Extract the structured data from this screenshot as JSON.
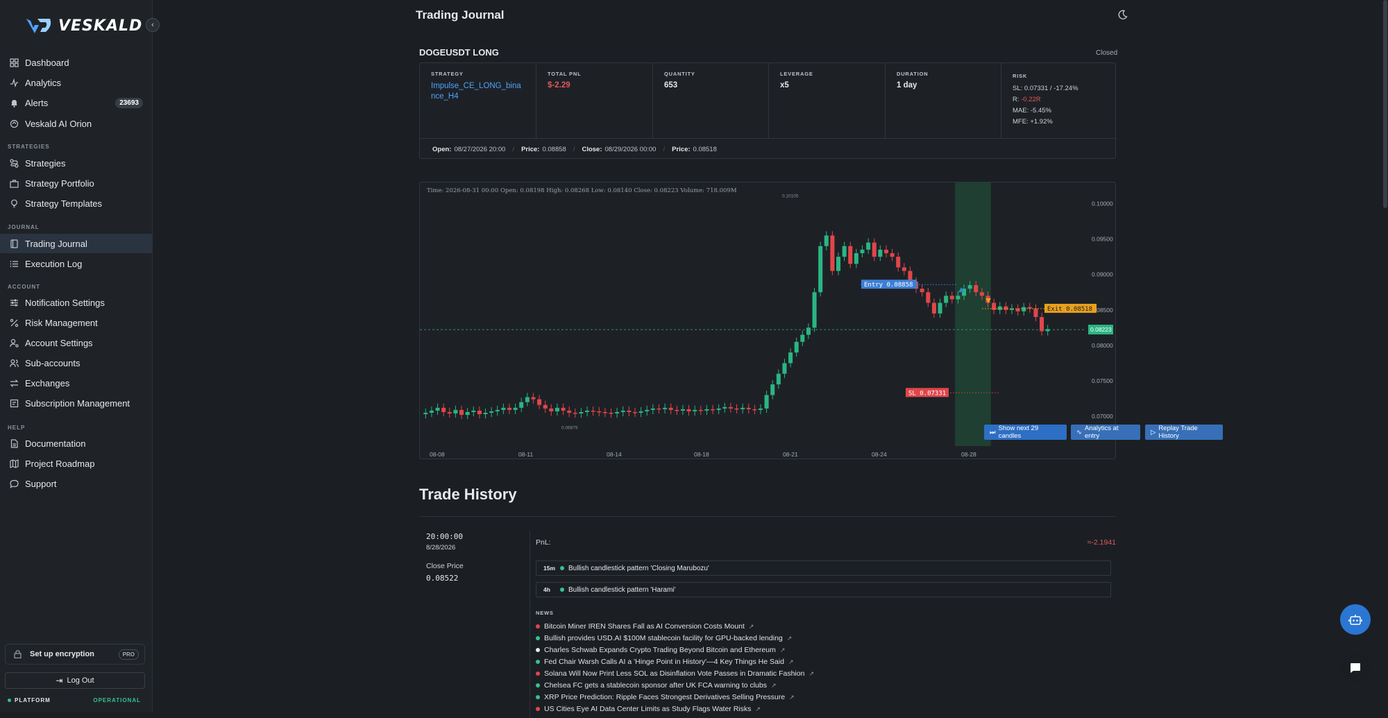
{
  "brand": {
    "name": "VESKALD"
  },
  "sidebar": {
    "items": [
      {
        "label": "Dashboard",
        "icon": "dashboard-icon"
      },
      {
        "label": "Analytics",
        "icon": "analytics-icon"
      },
      {
        "label": "Alerts",
        "icon": "bell-icon",
        "badge": "23693"
      },
      {
        "label": "Veskald AI Orion",
        "icon": "ai-icon"
      }
    ],
    "strategies_label": "STRATEGIES",
    "strategies": [
      {
        "label": "Strategies"
      },
      {
        "label": "Strategy Portfolio"
      },
      {
        "label": "Strategy Templates"
      }
    ],
    "journal_label": "JOURNAL",
    "journal": [
      {
        "label": "Trading Journal"
      },
      {
        "label": "Execution Log"
      }
    ],
    "account_label": "ACCOUNT",
    "account": [
      {
        "label": "Notification Settings"
      },
      {
        "label": "Risk Management"
      },
      {
        "label": "Account Settings"
      },
      {
        "label": "Sub-accounts"
      },
      {
        "label": "Exchanges"
      },
      {
        "label": "Subscription Management"
      }
    ],
    "help_label": "HELP",
    "help": [
      {
        "label": "Documentation"
      },
      {
        "label": "Project Roadmap"
      },
      {
        "label": "Support"
      }
    ],
    "encryption": "Set up encryption",
    "pro": "PRO",
    "logout": "Log Out",
    "platform": "PLATFORM",
    "platform_status": "OPERATIONAL"
  },
  "page": {
    "title": "Trading Journal",
    "symbol": "DOGEUSDT LONG",
    "status": "Closed"
  },
  "trade": {
    "strategy_label": "STRATEGY",
    "strategy": "Impulse_CE_LONG_binance_H4",
    "pnl_label": "TOTAL PNL",
    "pnl": "$-2.29",
    "qty_label": "QUANTITY",
    "qty": "653",
    "lev_label": "LEVERAGE",
    "lev": "x5",
    "dur_label": "DURATION",
    "dur": "1 day",
    "risk_label": "RISK",
    "sl": "SL: 0.07331  /  -17.24%",
    "r_label": "R: ",
    "r": "-0.22R",
    "mae": "MAE: -5.45%",
    "mfe": "MFE: +1.92%",
    "open_label": "Open:",
    "open": "08/27/2026 20:00",
    "oprice_label": "Price:",
    "oprice": "0.08858",
    "close_label": "Close:",
    "close": "08/29/2026 00:00",
    "cprice_label": "Price:",
    "cprice": "0.08518"
  },
  "chart_data": {
    "type": "candlestick",
    "ohlc_readout": "Time: 2026-08-31 00:00    Open: 0.08198    High: 0.08268    Low: 0.08140    Close: 0.08223    Volume: 718.009M",
    "x_ticks": [
      "08-08",
      "08-11",
      "08-14",
      "08-18",
      "08-21",
      "08-24",
      "08-28"
    ],
    "y_ticks": [
      "0.10000",
      "0.09500",
      "0.09000",
      "0.08500",
      "0.08000",
      "0.07500",
      "0.07000"
    ],
    "ylim": [
      0.066,
      0.102
    ],
    "high_label": "0.10105",
    "low_label": "0.06879",
    "entry": "Entry 0.08858",
    "exit": "Exit 0.08518",
    "sl": "SL 0.07331",
    "last": "0.08223",
    "entry_value": 0.08858,
    "exit_value": 0.08518,
    "sl_value": 0.07331,
    "last_value": 0.08223,
    "closes": [
      0.0705,
      0.0708,
      0.0712,
      0.0706,
      0.0704,
      0.0709,
      0.0702,
      0.0706,
      0.0708,
      0.0703,
      0.0705,
      0.0707,
      0.0709,
      0.0712,
      0.0709,
      0.0712,
      0.072,
      0.0727,
      0.0724,
      0.0716,
      0.0711,
      0.0707,
      0.0712,
      0.0708,
      0.0705,
      0.0704,
      0.0706,
      0.0708,
      0.0707,
      0.0706,
      0.0705,
      0.0704,
      0.0706,
      0.0708,
      0.0706,
      0.0705,
      0.0707,
      0.0709,
      0.0711,
      0.071,
      0.0712,
      0.0709,
      0.0708,
      0.071,
      0.0707,
      0.0709,
      0.0708,
      0.071,
      0.0709,
      0.0711,
      0.0713,
      0.0711,
      0.071,
      0.0712,
      0.071,
      0.0709,
      0.0711,
      0.073,
      0.0745,
      0.076,
      0.0775,
      0.079,
      0.0805,
      0.0815,
      0.0825,
      0.0875,
      0.094,
      0.0955,
      0.0905,
      0.0925,
      0.094,
      0.0915,
      0.093,
      0.0935,
      0.0945,
      0.0925,
      0.0935,
      0.093,
      0.0925,
      0.091,
      0.0905,
      0.089,
      0.088,
      0.0875,
      0.086,
      0.0845,
      0.086,
      0.087,
      0.0865,
      0.087,
      0.088,
      0.0885,
      0.0875,
      0.087,
      0.086,
      0.085,
      0.0855,
      0.085,
      0.0852,
      0.0848,
      0.0854,
      0.0852,
      0.084,
      0.082,
      0.0823
    ],
    "buttons": [
      "Show next 29 candles",
      "Analytics at entry",
      "Replay Trade History"
    ]
  },
  "history": {
    "title": "Trade History",
    "time": "20:00:00",
    "date": "8/28/2026",
    "close_price_label": "Close Price",
    "close_price": "0.08522",
    "pnl_label": "PnL:",
    "pnl": "≈-2.1941",
    "patterns": [
      {
        "tf": "15m",
        "text": "Bullish candlestick pattern 'Closing Marubozu'"
      },
      {
        "tf": "4h",
        "text": "Bullish candlestick pattern 'Harami'"
      }
    ],
    "news_label": "NEWS",
    "news": [
      {
        "text": "Bitcoin Miner IREN Shares Fall as AI Conversion Costs Mount",
        "color": "#e0464a"
      },
      {
        "text": "Bullish provides USD.AI $100M stablecoin facility for GPU-backed lending",
        "color": "#34c38f"
      },
      {
        "text": "Charles Schwab Expands Crypto Trading Beyond Bitcoin and Ethereum",
        "color": "#e6e8ea"
      },
      {
        "text": "Fed Chair Warsh Calls AI a 'Hinge Point in History'—4 Key Things He Said",
        "color": "#34c38f"
      },
      {
        "text": "Solana Will Now Print Less SOL as Disinflation Vote Passes in Dramatic Fashion",
        "color": "#e0464a"
      },
      {
        "text": "Chelsea FC gets a stablecoin sponsor after UK FCA warning to clubs",
        "color": "#34c38f"
      },
      {
        "text": "XRP Price Prediction: Ripple Faces Strongest Derivatives Selling Pressure",
        "color": "#34c38f"
      },
      {
        "text": "US Cities Eye AI Data Center Limits as Study Flags Water Risks",
        "color": "#e0464a"
      }
    ]
  }
}
